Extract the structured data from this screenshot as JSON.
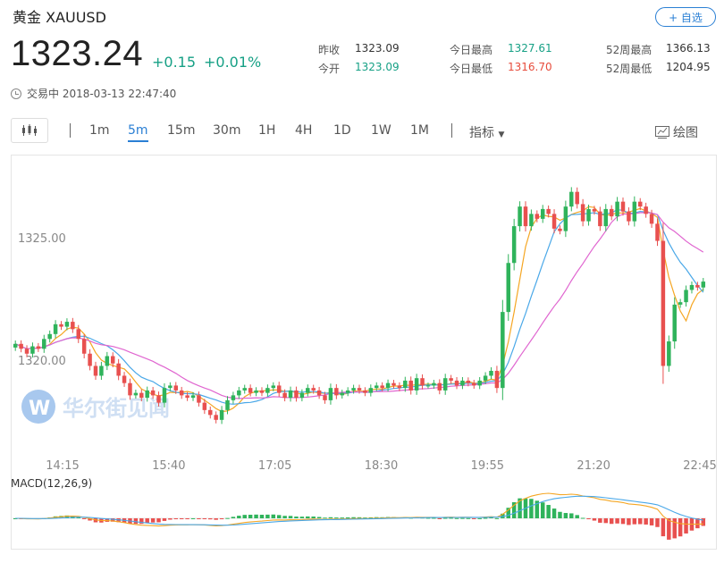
{
  "header": {
    "title": "黄金 XAUUSD",
    "follow_label": "+ 自选",
    "price": "1323.24",
    "change": "+0.15",
    "change_pct": "+0.01%",
    "status": "交易中 2018-03-13 22:47:40"
  },
  "stats": {
    "prev_close_label": "昨收",
    "prev_close": "1323.09",
    "open_label": "今开",
    "open": "1323.09",
    "day_high_label": "今日最高",
    "day_high": "1327.61",
    "day_low_label": "今日最低",
    "day_low": "1316.70",
    "w52_high_label": "52周最高",
    "w52_high": "1366.13",
    "w52_low_label": "52周最低",
    "w52_low": "1204.95"
  },
  "toolbar": {
    "timeframes": [
      "1m",
      "5m",
      "15m",
      "30m",
      "1H",
      "4H",
      "1D",
      "1W",
      "1M"
    ],
    "active_timeframe": "5m",
    "indicator_label": "指标",
    "draw_label": "绘图"
  },
  "watermark": {
    "text": "华尔街见闻"
  },
  "colors": {
    "up": "#2fb35b",
    "down": "#e8504f",
    "ma5": "#f5a623",
    "ma10": "#4aa8e8",
    "ma20": "#e066d0",
    "accent": "#2a7fd4"
  },
  "chart_data": {
    "type": "candlestick",
    "x_ticks": [
      "14:15",
      "15:40",
      "17:05",
      "18:30",
      "19:55",
      "21:20",
      "22:45"
    ],
    "y_ticks": [
      1320.0,
      1325.0
    ],
    "y_tick_labels": [
      "1320.00",
      "1325.00"
    ],
    "ylim": [
      1316.5,
      1327.8
    ],
    "macd_label": "MACD(12,26,9)",
    "close": [
      1320.7,
      1320.5,
      1320.3,
      1320.6,
      1320.5,
      1320.9,
      1321.1,
      1321.5,
      1321.4,
      1321.6,
      1321.3,
      1320.9,
      1320.3,
      1319.8,
      1319.4,
      1319.8,
      1320.2,
      1319.9,
      1319.4,
      1319.1,
      1318.6,
      1318.7,
      1318.5,
      1318.8,
      1318.6,
      1318.3,
      1318.9,
      1319.0,
      1318.8,
      1318.6,
      1318.5,
      1318.6,
      1318.3,
      1318.0,
      1317.8,
      1317.6,
      1318.0,
      1318.4,
      1318.6,
      1318.8,
      1318.9,
      1318.7,
      1318.8,
      1318.7,
      1318.9,
      1319.0,
      1318.7,
      1318.5,
      1318.8,
      1318.5,
      1318.7,
      1318.9,
      1318.8,
      1318.6,
      1318.4,
      1318.9,
      1318.6,
      1318.7,
      1318.8,
      1318.9,
      1318.8,
      1318.7,
      1318.9,
      1319.0,
      1318.9,
      1319.1,
      1319.0,
      1318.9,
      1319.2,
      1318.8,
      1319.3,
      1319.0,
      1319.0,
      1319.1,
      1318.8,
      1319.3,
      1319.2,
      1319.0,
      1319.2,
      1319.1,
      1319.0,
      1319.2,
      1319.4,
      1319.6,
      1318.9,
      1322.0,
      1324.0,
      1325.5,
      1326.3,
      1325.5,
      1326.0,
      1325.8,
      1326.2,
      1326.0,
      1325.4,
      1325.3,
      1326.3,
      1326.9,
      1326.4,
      1325.7,
      1326.2,
      1326.1,
      1325.5,
      1326.2,
      1325.9,
      1326.5,
      1326.1,
      1325.7,
      1326.5,
      1326.3,
      1326.0,
      1325.6,
      1324.9,
      1319.8,
      1320.8,
      1322.3,
      1322.4,
      1322.9,
      1323.1,
      1323.0,
      1323.24
    ]
  }
}
